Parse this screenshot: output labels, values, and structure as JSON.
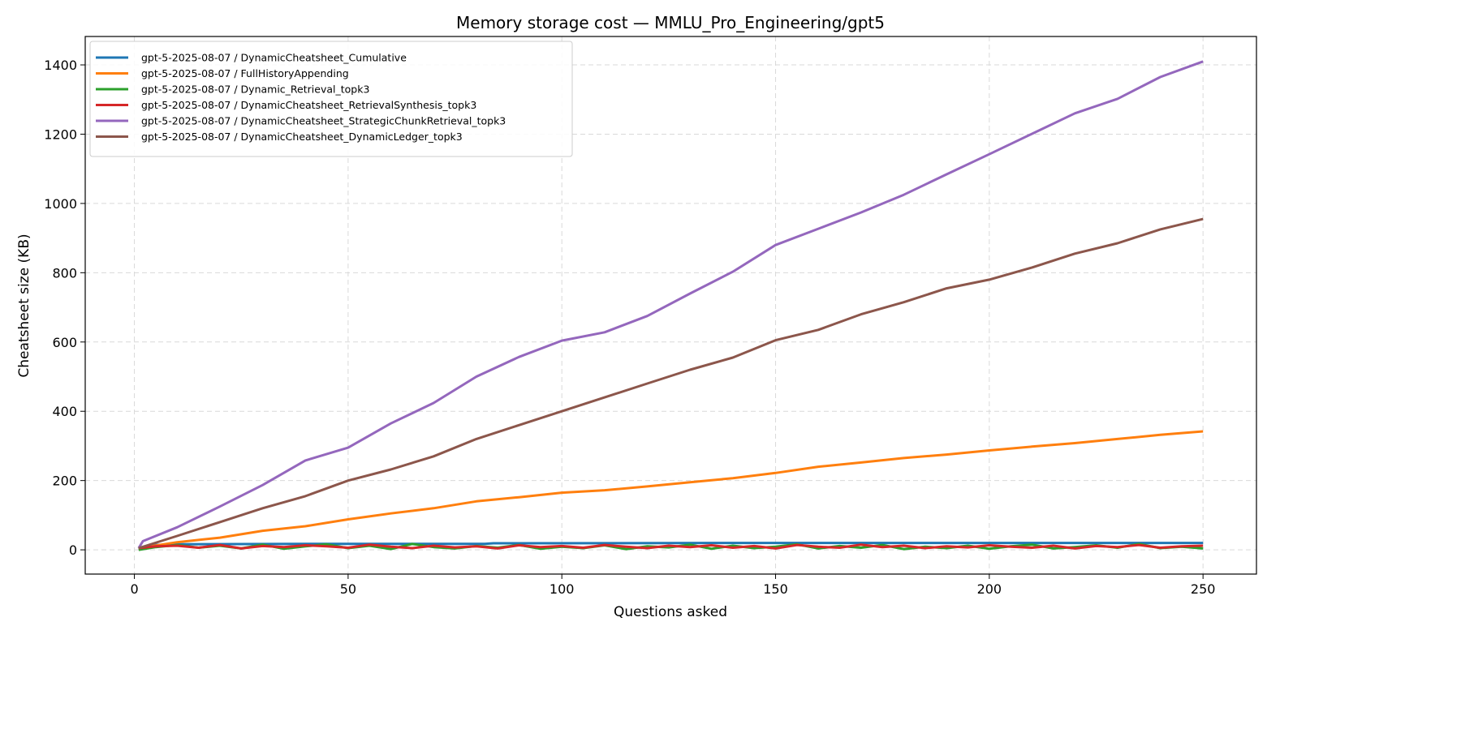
{
  "chart_data": {
    "type": "line",
    "title": "Memory storage cost — MMLU_Pro_Engineering/gpt5",
    "xlabel": "Questions asked",
    "ylabel": "Cheatsheet size (KB)",
    "xlim": [
      -11.5,
      262.5
    ],
    "ylim": [
      -70,
      1482
    ],
    "xticks": [
      0,
      50,
      100,
      150,
      200,
      250
    ],
    "yticks": [
      0,
      200,
      400,
      600,
      800,
      1000,
      1200,
      1400
    ],
    "grid": true,
    "legend_position": "top-left",
    "series": [
      {
        "name": "gpt-5-2025-08-07 / DynamicCheatsheet_Cumulative",
        "color": "#1f77b4",
        "x": [
          1,
          5,
          10,
          40,
          82,
          84,
          150,
          250
        ],
        "y": [
          2,
          14,
          16,
          17,
          17,
          19,
          20,
          20
        ]
      },
      {
        "name": "gpt-5-2025-08-07 / FullHistoryAppending",
        "color": "#ff7f0e",
        "x": [
          1,
          10,
          20,
          30,
          40,
          50,
          60,
          70,
          80,
          90,
          100,
          110,
          120,
          130,
          140,
          150,
          160,
          170,
          180,
          190,
          200,
          210,
          220,
          230,
          240,
          250
        ],
        "y": [
          5,
          22,
          35,
          55,
          68,
          88,
          105,
          120,
          140,
          152,
          165,
          172,
          183,
          195,
          207,
          222,
          240,
          252,
          265,
          275,
          287,
          298,
          308,
          320,
          332,
          342
        ]
      },
      {
        "name": "gpt-5-2025-08-07 / Dynamic_Retrieval_topk3",
        "color": "#2ca02c",
        "x": [
          1,
          5,
          10,
          15,
          20,
          25,
          30,
          35,
          40,
          45,
          50,
          55,
          60,
          65,
          70,
          75,
          80,
          85,
          90,
          95,
          100,
          105,
          110,
          115,
          120,
          125,
          130,
          135,
          140,
          145,
          150,
          155,
          160,
          165,
          170,
          175,
          180,
          185,
          190,
          195,
          200,
          205,
          210,
          215,
          220,
          225,
          230,
          235,
          240,
          245,
          250
        ],
        "y": [
          0,
          8,
          14,
          6,
          12,
          4,
          15,
          3,
          10,
          16,
          5,
          12,
          2,
          17,
          8,
          4,
          11,
          6,
          14,
          3,
          9,
          5,
          13,
          2,
          10,
          7,
          15,
          3,
          12,
          5,
          9,
          16,
          4,
          11,
          6,
          14,
          2,
          9,
          5,
          12,
          3,
          10,
          15,
          4,
          8,
          13,
          6,
          17,
          5,
          9,
          4
        ]
      },
      {
        "name": "gpt-5-2025-08-07 / DynamicCheatsheet_RetrievalSynthesis_topk3",
        "color": "#d62728",
        "x": [
          1,
          5,
          10,
          15,
          20,
          25,
          30,
          35,
          40,
          45,
          50,
          55,
          60,
          65,
          70,
          75,
          80,
          85,
          90,
          95,
          100,
          105,
          110,
          115,
          120,
          125,
          130,
          135,
          140,
          145,
          150,
          155,
          160,
          165,
          170,
          175,
          180,
          185,
          190,
          195,
          200,
          205,
          210,
          215,
          220,
          225,
          230,
          235,
          240,
          245,
          250
        ],
        "y": [
          5,
          10,
          12,
          6,
          14,
          4,
          11,
          8,
          13,
          10,
          6,
          15,
          9,
          5,
          12,
          7,
          10,
          4,
          13,
          8,
          11,
          6,
          14,
          9,
          5,
          12,
          8,
          13,
          6,
          11,
          4,
          14,
          9,
          6,
          15,
          8,
          12,
          5,
          10,
          7,
          13,
          9,
          6,
          12,
          4,
          11,
          8,
          14,
          6,
          10,
          12
        ]
      },
      {
        "name": "gpt-5-2025-08-07 / DynamicCheatsheet_StrategicChunkRetrieval_topk3",
        "color": "#9467bd",
        "x": [
          1,
          2,
          10,
          20,
          30,
          40,
          50,
          60,
          70,
          80,
          90,
          100,
          110,
          120,
          130,
          140,
          150,
          160,
          170,
          180,
          190,
          200,
          210,
          220,
          230,
          240,
          250
        ],
        "y": [
          5,
          25,
          65,
          125,
          187,
          258,
          295,
          365,
          424,
          500,
          557,
          604,
          628,
          675,
          740,
          803,
          880,
          927,
          974,
          1025,
          1084,
          1142,
          1201,
          1260,
          1302,
          1365,
          1410
        ]
      },
      {
        "name": "gpt-5-2025-08-07 / DynamicCheatsheet_DynamicLedger_topk3",
        "color": "#8c564b",
        "x": [
          1,
          10,
          20,
          30,
          40,
          50,
          60,
          70,
          80,
          90,
          100,
          110,
          120,
          130,
          140,
          150,
          160,
          170,
          180,
          190,
          200,
          210,
          220,
          230,
          240,
          250
        ],
        "y": [
          5,
          40,
          80,
          120,
          155,
          200,
          232,
          270,
          320,
          360,
          400,
          440,
          480,
          520,
          555,
          605,
          635,
          680,
          715,
          755,
          780,
          815,
          855,
          885,
          925,
          955
        ]
      }
    ]
  }
}
